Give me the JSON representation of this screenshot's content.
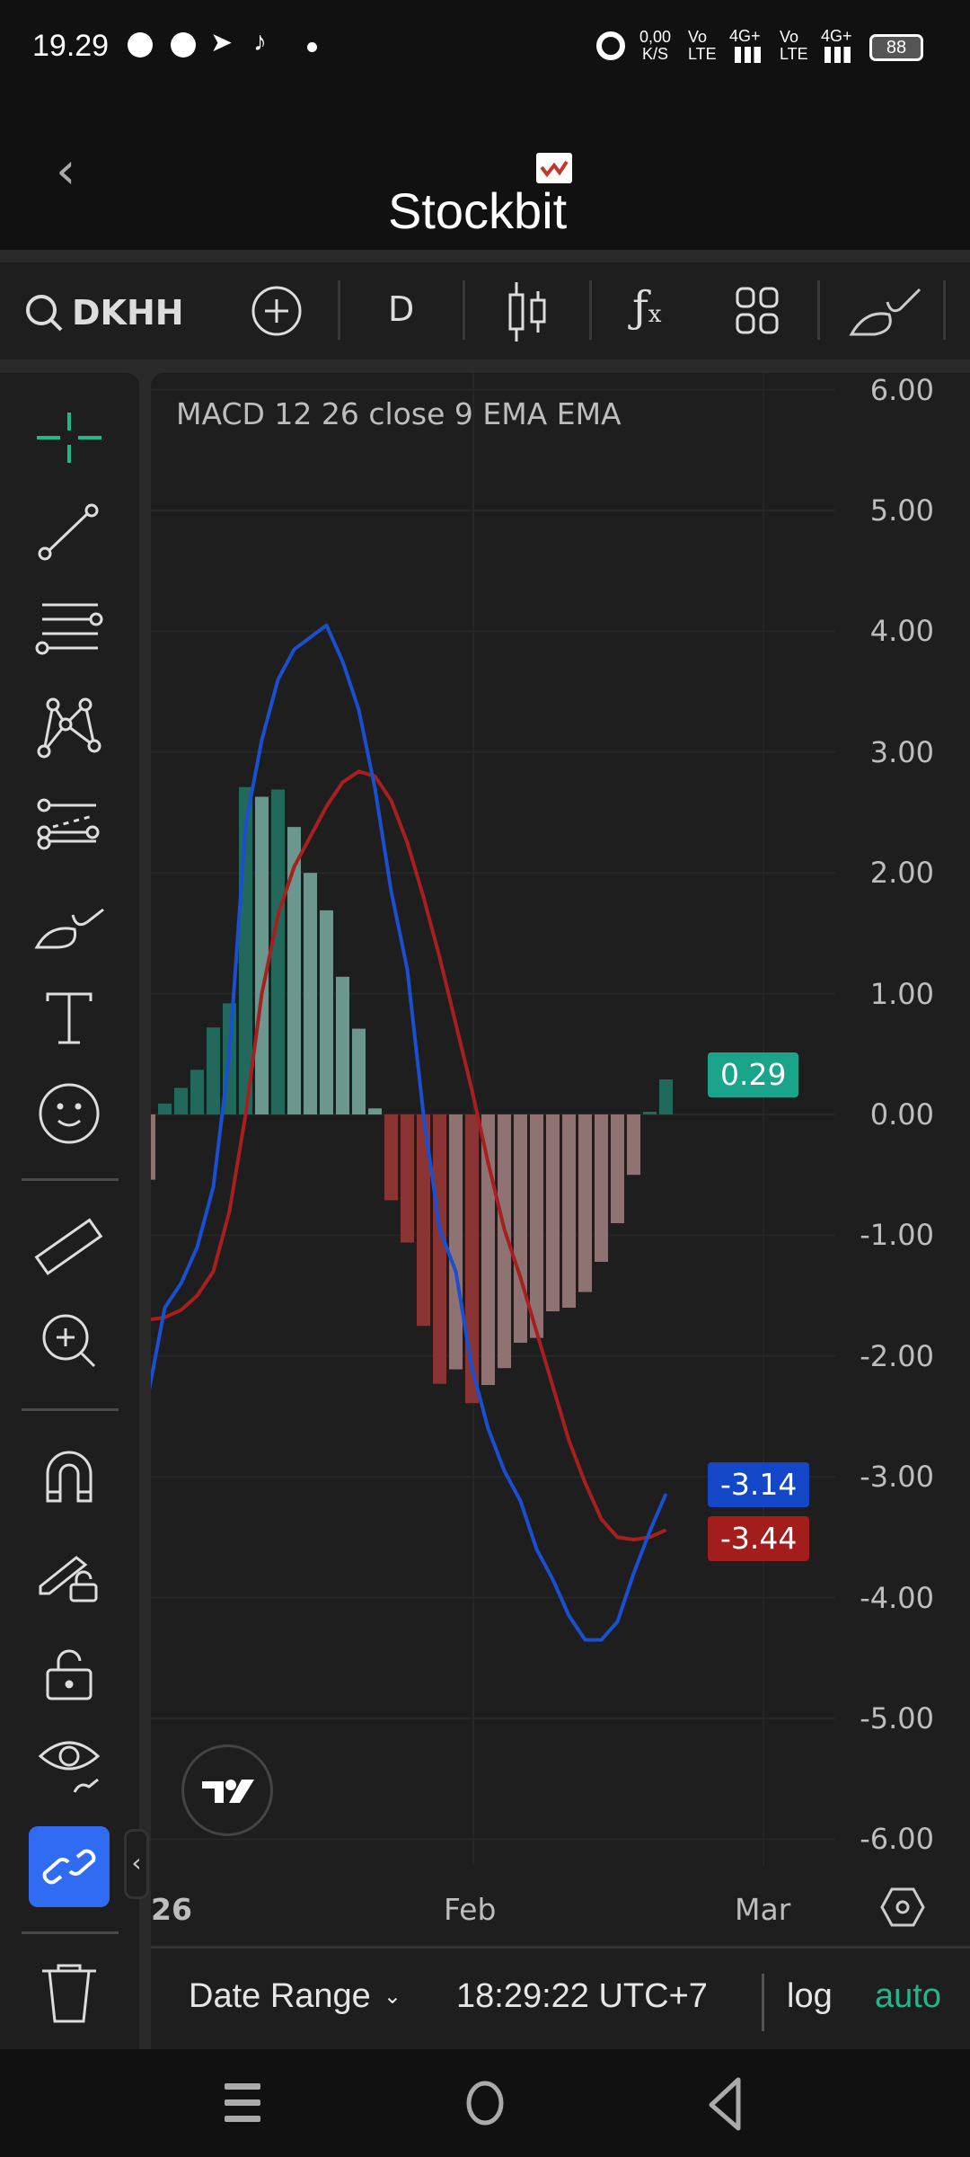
{
  "status_bar": {
    "time": "19.29",
    "net_speed": "0,00",
    "net_unit": "K/S",
    "sim1": "Vo LTE",
    "sim1_net": "4G+",
    "sim2": "Vo LTE",
    "sim2_net": "4G+",
    "battery": "88"
  },
  "header": {
    "logo": "Stockbit"
  },
  "toolbar": {
    "symbol": "DKHH",
    "interval": "D"
  },
  "chart_data": {
    "type": "bar",
    "title": "MACD 12 26 close 9 EMA EMA",
    "ylim": [
      -6,
      6
    ],
    "y_ticks": [
      "6.00",
      "5.00",
      "4.00",
      "3.00",
      "2.00",
      "1.00",
      "0.00",
      "-1.00",
      "-2.00",
      "-3.00",
      "-4.00",
      "-5.00",
      "-6.00"
    ],
    "x_ticks": [
      "26",
      "Feb",
      "Mar"
    ],
    "grid": true,
    "histogram": [
      -0.54,
      0.09,
      0.22,
      0.37,
      0.72,
      0.92,
      2.71,
      2.63,
      2.69,
      2.38,
      2.0,
      1.69,
      1.14,
      0.71,
      0.05,
      -0.71,
      -1.06,
      -1.75,
      -2.23,
      -2.11,
      -2.39,
      -2.24,
      -2.1,
      -1.89,
      -1.85,
      -1.63,
      -1.6,
      -1.47,
      -1.22,
      -0.9,
      -0.5,
      0.02,
      0.29
    ],
    "macd": [
      -2.3,
      -1.6,
      -1.4,
      -1.1,
      -0.6,
      0.5,
      2.4,
      3.1,
      3.6,
      3.85,
      3.95,
      4.05,
      3.75,
      3.35,
      2.7,
      1.85,
      1.2,
      0.0,
      -0.95,
      -1.3,
      -2.1,
      -2.6,
      -2.95,
      -3.2,
      -3.6,
      -3.85,
      -4.15,
      -4.35,
      -4.35,
      -4.2,
      -3.8,
      -3.45,
      -3.14
    ],
    "signal": [
      -1.7,
      -1.68,
      -1.62,
      -1.5,
      -1.3,
      -0.8,
      0.0,
      1.0,
      1.65,
      2.05,
      2.3,
      2.55,
      2.75,
      2.84,
      2.8,
      2.6,
      2.25,
      1.8,
      1.3,
      0.75,
      0.2,
      -0.4,
      -0.95,
      -1.35,
      -1.8,
      -2.25,
      -2.7,
      -3.05,
      -3.35,
      -3.5,
      -3.52,
      -3.5,
      -3.44
    ],
    "last_values": {
      "histogram": "0.29",
      "macd": "-3.14",
      "signal": "-3.44"
    },
    "colors": {
      "macd": "#1a4fd0",
      "signal": "#a81f1f",
      "hist_up_strong": "#22695c",
      "hist_up_weak": "#6b978e",
      "hist_down_strong": "#8b3434",
      "hist_down_weak": "#8f7373"
    }
  },
  "bottom_bar": {
    "date_range": "Date Range",
    "time": "18:29:22 UTC+7",
    "log": "log",
    "auto": "auto"
  },
  "accent": "#1fb88c"
}
